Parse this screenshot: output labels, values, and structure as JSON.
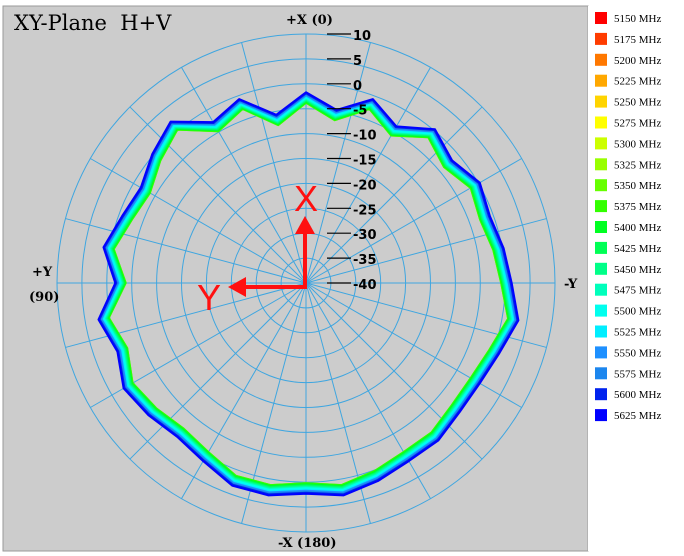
{
  "chart_data": {
    "type": "polar-radiation-pattern",
    "title": "XY-Plane  H+V",
    "direction_labels": {
      "top": "+X (0)",
      "bottom": "-X (180)",
      "left_line1": "+Y",
      "left_line2": "(90)",
      "right": "-Y"
    },
    "radial_ticks": [
      "10",
      "5",
      "0",
      "-5",
      "-10",
      "-15",
      "-20",
      "-25",
      "-30",
      "-35",
      "-40"
    ],
    "radial_range_dB": [
      -40,
      10
    ],
    "angular_grid_step_deg": 15,
    "angles_deg": [
      0,
      10,
      20,
      30,
      40,
      50,
      60,
      70,
      80,
      90,
      100,
      110,
      120,
      130,
      140,
      150,
      160,
      170,
      180,
      190,
      200,
      210,
      220,
      230,
      240,
      250,
      260,
      270,
      280,
      290,
      300,
      310,
      320,
      330,
      340,
      350
    ],
    "base_gain_dB": [
      -2,
      -6,
      -1,
      -3,
      2,
      0,
      -2,
      -1,
      1,
      -2,
      2,
      0,
      2,
      1,
      0,
      1,
      3,
      3,
      2,
      3,
      2,
      1,
      1,
      0,
      0,
      1,
      3,
      1,
      0,
      -1,
      0,
      -2,
      0,
      -4,
      -1,
      -5
    ],
    "series": [
      {
        "name": "5150 MHz",
        "color": "#ff0000",
        "offset_dB": 0.0
      },
      {
        "name": "5175 MHz",
        "color": "#ff3c00",
        "offset_dB": -0.2
      },
      {
        "name": "5200 MHz",
        "color": "#ff7800",
        "offset_dB": -0.4
      },
      {
        "name": "5225 MHz",
        "color": "#ffa800",
        "offset_dB": -0.7
      },
      {
        "name": "5250 MHz",
        "color": "#ffd400",
        "offset_dB": -1.0
      },
      {
        "name": "5275 MHz",
        "color": "#ffff00",
        "offset_dB": -1.3
      },
      {
        "name": "5300 MHz",
        "color": "#ccff00",
        "offset_dB": -1.5
      },
      {
        "name": "5325 MHz",
        "color": "#99ff00",
        "offset_dB": -1.7
      },
      {
        "name": "5350 MHz",
        "color": "#66ff00",
        "offset_dB": -1.8
      },
      {
        "name": "5375 MHz",
        "color": "#33ff00",
        "offset_dB": -1.8
      },
      {
        "name": "5400 MHz",
        "color": "#00ff22",
        "offset_dB": -1.6
      },
      {
        "name": "5425 MHz",
        "color": "#00ff55",
        "offset_dB": -1.4
      },
      {
        "name": "5450 MHz",
        "color": "#00ff88",
        "offset_dB": -1.2
      },
      {
        "name": "5475 MHz",
        "color": "#00ffbb",
        "offset_dB": -1.0
      },
      {
        "name": "5500 MHz",
        "color": "#00ffee",
        "offset_dB": -0.8
      },
      {
        "name": "5525 MHz",
        "color": "#00eeff",
        "offset_dB": -0.5
      },
      {
        "name": "5550 MHz",
        "color": "#1e90ff",
        "offset_dB": -0.3
      },
      {
        "name": "5575 MHz",
        "color": "#1c86ee",
        "offset_dB": -0.1
      },
      {
        "name": "5600 MHz",
        "color": "#0022ee",
        "offset_dB": 0.1
      },
      {
        "name": "5625 MHz",
        "color": "#0000ff",
        "offset_dB": 0.3
      }
    ],
    "overlay_labels": {
      "x_axis_letter": "X",
      "y_axis_letter": "Y"
    },
    "overlay_color": "#ff1010",
    "grid_color": "#3fa6e0",
    "background_color": "#cccccc"
  }
}
